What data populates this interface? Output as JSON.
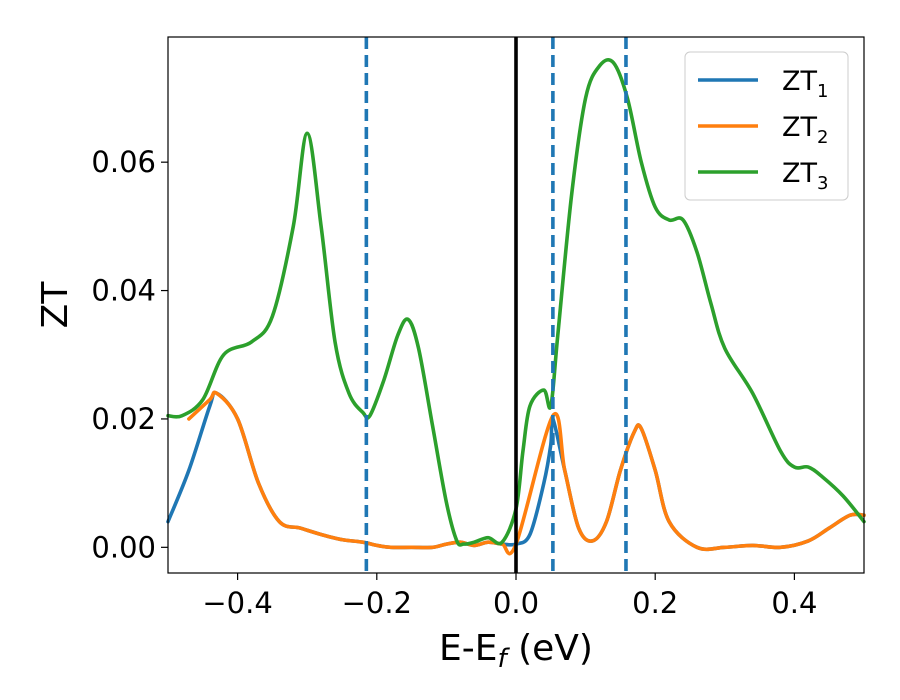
{
  "chart_data": {
    "type": "line",
    "title": "",
    "xlabel_main": "E-E",
    "xlabel_sub": "f",
    "xlabel_unit": " (eV)",
    "ylabel": "ZT",
    "xlim": [
      -0.5,
      0.5
    ],
    "ylim": [
      -0.004,
      0.0795
    ],
    "xticks": [
      -0.4,
      -0.2,
      0.0,
      0.2,
      0.4
    ],
    "xtick_labels": [
      "−0.4",
      "−0.2",
      "0.0",
      "0.2",
      "0.4"
    ],
    "yticks": [
      0.0,
      0.02,
      0.04,
      0.06
    ],
    "ytick_labels": [
      "0.00",
      "0.02",
      "0.04",
      "0.06"
    ],
    "grid": false,
    "legend_position": "top-right",
    "vertical_lines": [
      {
        "x": -0.215,
        "style": "dashed",
        "color": "#1f77b4"
      },
      {
        "x": 0.0,
        "style": "solid",
        "color": "#000000"
      },
      {
        "x": 0.053,
        "style": "dashed",
        "color": "#1f77b4"
      },
      {
        "x": 0.158,
        "style": "dashed",
        "color": "#1f77b4"
      }
    ],
    "series": [
      {
        "name": "ZT",
        "name_sub": "1",
        "color": "#1f77b4",
        "x": [
          -0.5,
          -0.47,
          -0.44,
          -0.43,
          -0.4,
          -0.37,
          -0.34,
          -0.31,
          -0.28,
          -0.25,
          -0.22,
          -0.2,
          -0.18,
          -0.15,
          -0.12,
          -0.1,
          -0.08,
          -0.06,
          -0.04,
          -0.02,
          0.0,
          0.02,
          0.04,
          0.05,
          0.053,
          0.07,
          0.09,
          0.11,
          0.13,
          0.15,
          0.17,
          0.18,
          0.2,
          0.22,
          0.26,
          0.3,
          0.34,
          0.38,
          0.42,
          0.45,
          0.48,
          0.5
        ],
        "y": [
          0.004,
          0.012,
          0.022,
          0.024,
          0.02,
          0.01,
          0.004,
          0.003,
          0.002,
          0.0012,
          0.0008,
          0.0003,
          0.0,
          0.0,
          0.0,
          0.0005,
          0.0008,
          0.0003,
          0.0008,
          0.0005,
          0.0005,
          0.002,
          0.01,
          0.016,
          0.02,
          0.012,
          0.003,
          0.001,
          0.004,
          0.012,
          0.018,
          0.0185,
          0.012,
          0.004,
          0.0,
          0.0,
          0.0003,
          0.0,
          0.001,
          0.003,
          0.005,
          0.005
        ]
      },
      {
        "name": "ZT",
        "name_sub": "2",
        "color": "#ff7f0e",
        "x": [
          -0.47,
          -0.44,
          -0.43,
          -0.4,
          -0.37,
          -0.34,
          -0.31,
          -0.28,
          -0.25,
          -0.22,
          -0.2,
          -0.18,
          -0.15,
          -0.12,
          -0.1,
          -0.08,
          -0.06,
          -0.04,
          -0.02,
          0.0,
          0.053,
          0.07,
          0.09,
          0.11,
          0.13,
          0.15,
          0.17,
          0.18,
          0.2,
          0.22,
          0.26,
          0.3,
          0.34,
          0.38,
          0.42,
          0.45,
          0.48,
          0.5
        ],
        "y": [
          0.02,
          0.023,
          0.024,
          0.02,
          0.01,
          0.004,
          0.003,
          0.002,
          0.0012,
          0.0008,
          0.0003,
          0.0,
          0.0,
          0.0,
          0.0005,
          0.0008,
          0.0003,
          0.0008,
          0.0005,
          0.0005,
          0.0205,
          0.012,
          0.003,
          0.001,
          0.004,
          0.012,
          0.018,
          0.0185,
          0.012,
          0.004,
          0.0,
          0.0,
          0.0003,
          0.0,
          0.001,
          0.003,
          0.005,
          0.005
        ]
      },
      {
        "name": "ZT",
        "name_sub": "3",
        "color": "#2ca02c",
        "x": [
          -0.5,
          -0.48,
          -0.45,
          -0.42,
          -0.38,
          -0.35,
          -0.32,
          -0.3,
          -0.28,
          -0.26,
          -0.24,
          -0.22,
          -0.21,
          -0.19,
          -0.17,
          -0.155,
          -0.14,
          -0.12,
          -0.1,
          -0.085,
          -0.075,
          -0.06,
          -0.04,
          -0.02,
          0.0,
          0.01,
          0.02,
          0.04,
          0.05,
          0.06,
          0.08,
          0.1,
          0.12,
          0.14,
          0.16,
          0.18,
          0.2,
          0.22,
          0.24,
          0.26,
          0.28,
          0.3,
          0.34,
          0.38,
          0.4,
          0.42,
          0.44,
          0.47,
          0.5
        ],
        "y": [
          0.0205,
          0.0205,
          0.023,
          0.03,
          0.032,
          0.036,
          0.05,
          0.0645,
          0.05,
          0.032,
          0.024,
          0.021,
          0.0205,
          0.026,
          0.033,
          0.0355,
          0.031,
          0.019,
          0.007,
          0.001,
          0.0005,
          0.0008,
          0.0015,
          0.0008,
          0.006,
          0.015,
          0.022,
          0.0245,
          0.022,
          0.033,
          0.055,
          0.07,
          0.075,
          0.0755,
          0.07,
          0.06,
          0.053,
          0.051,
          0.051,
          0.046,
          0.038,
          0.031,
          0.024,
          0.015,
          0.0125,
          0.0125,
          0.011,
          0.008,
          0.004
        ]
      }
    ]
  },
  "colors": {
    "axes": "#000000",
    "background": "#ffffff",
    "legend_border": "#cccccc"
  }
}
